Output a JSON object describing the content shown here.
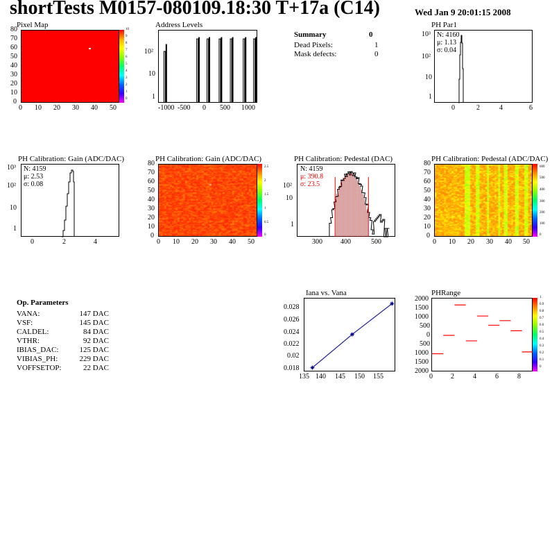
{
  "header": {
    "title": "shortTests M0157-080109.18:30 T+17a (C14)",
    "date": "Wed Jan  9 20:01:15 2008"
  },
  "summary": {
    "title": "Summary",
    "count": "0",
    "rows": [
      {
        "label": "Dead Pixels:",
        "value": "1"
      },
      {
        "label": "Mask defects:",
        "value": "0"
      }
    ]
  },
  "op_params": {
    "title": "Op. Parameters",
    "rows": [
      {
        "label": "VANA:",
        "value": "147 DAC"
      },
      {
        "label": "VSF:",
        "value": "145 DAC"
      },
      {
        "label": "CALDEL:",
        "value": "84 DAC"
      },
      {
        "label": "VTHR:",
        "value": "92 DAC"
      },
      {
        "label": "IBIAS_DAC:",
        "value": "125 DAC"
      },
      {
        "label": "VIBIAS_PH:",
        "value": "229 DAC"
      },
      {
        "label": "VOFFSETOP:",
        "value": "22 DAC"
      }
    ]
  },
  "colors": {
    "red": "#ff0000",
    "navy": "#00008b",
    "line_blue": "#2d2da0"
  },
  "chart_data": [
    {
      "id": "pixel_map",
      "type": "heatmap",
      "title": "Pixel Map",
      "xlim": [
        0,
        52
      ],
      "ylim": [
        0,
        80
      ],
      "xticks": [
        "0",
        "10",
        "20",
        "30",
        "40",
        "50"
      ],
      "yticks": [
        "0",
        "10",
        "20",
        "30",
        "40",
        "50",
        "60",
        "70",
        "80"
      ],
      "zticks": [
        "10",
        "9",
        "8",
        "7",
        "6",
        "5",
        "4",
        "3",
        "2",
        "1",
        "0"
      ],
      "fill_color": "#ff0000",
      "dead_pixel": [
        37,
        61
      ]
    },
    {
      "id": "address_levels",
      "type": "bar",
      "title": "Address Levels",
      "log_y": true,
      "xlim": [
        -1150,
        1150
      ],
      "xticks": [
        "-1000",
        "-500",
        "0",
        "500",
        "1000"
      ],
      "yticks": [
        "1",
        "10",
        "10²"
      ],
      "peaks": [
        -1000,
        -240,
        0,
        280,
        540,
        840,
        1080
      ]
    },
    {
      "id": "ph_par1",
      "type": "bar",
      "title": "PH Par1",
      "log_y": true,
      "xlim": [
        -1,
        6
      ],
      "xticks": [
        "0",
        "2",
        "4",
        "6"
      ],
      "yticks": [
        "1",
        "10",
        "10²",
        "10³"
      ],
      "stats": [
        "N: 4160",
        "μ: 1.13",
        "σ: 0.04"
      ]
    },
    {
      "id": "ph_gain_hist",
      "type": "bar",
      "title": "PH Calibration: Gain (ADC/DAC)",
      "log_y": true,
      "xlim": [
        -1,
        5.5
      ],
      "xticks": [
        "0",
        "2",
        "4"
      ],
      "yticks": [
        "1",
        "10",
        "10²",
        "10³"
      ],
      "stats": [
        "N: 4159",
        "μ: 2.53",
        "σ: 0.08"
      ]
    },
    {
      "id": "ph_gain_map",
      "type": "heatmap",
      "title": "PH Calibration: Gain (ADC/DAC)",
      "xticks": [
        "0",
        "10",
        "20",
        "30",
        "40",
        "50"
      ],
      "yticks": [
        "0",
        "10",
        "20",
        "30",
        "40",
        "50",
        "60",
        "70",
        "80"
      ],
      "zticks": [
        "2.5",
        "2",
        "1.5",
        "1",
        "0.5",
        "0"
      ]
    },
    {
      "id": "ph_pedestal_hist",
      "type": "bar",
      "title": "PH Calibration: Pedestal (DAC)",
      "log_y": true,
      "xlim": [
        210,
        550
      ],
      "xticks": [
        "300",
        "400",
        "500"
      ],
      "yticks": [
        "1",
        "10",
        "10²"
      ],
      "stats": [
        "N: 4159",
        "μ: 390.8",
        "σ: 23.5"
      ],
      "cut_lines": [
        340,
        455
      ]
    },
    {
      "id": "ph_pedestal_map",
      "type": "heatmap",
      "title": "PH Calibration: Pedestal (ADC/DAC)",
      "xticks": [
        "0",
        "10",
        "20",
        "30",
        "40",
        "50"
      ],
      "yticks": [
        "0",
        "10",
        "20",
        "30",
        "40",
        "50",
        "60",
        "70",
        "80"
      ],
      "zticks": [
        "600",
        "500",
        "400",
        "300",
        "200",
        "100",
        "0"
      ]
    },
    {
      "id": "iana_vana",
      "type": "line",
      "title": "Iana vs. Vana",
      "xlim": [
        135,
        158
      ],
      "ylim": [
        0.018,
        0.0295
      ],
      "xticks": [
        "135",
        "140",
        "145",
        "150",
        "155"
      ],
      "yticks": [
        "0.018",
        "0.02",
        "0.022",
        "0.024",
        "0.026",
        "0.028"
      ],
      "x": [
        137,
        147,
        157
      ],
      "y": [
        0.0187,
        0.0239,
        0.0287
      ]
    },
    {
      "id": "ph_range",
      "type": "scatter",
      "title": "PHRange",
      "xlim": [
        0,
        9
      ],
      "ylim": [
        -2000,
        2000
      ],
      "xticks": [
        "0",
        "2",
        "4",
        "6",
        "8"
      ],
      "yticks": [
        "2000",
        "1500",
        "1000",
        "500",
        "0",
        "500",
        "1000",
        "1500",
        "2000"
      ],
      "zticks": [
        "1",
        "0.9",
        "0.8",
        "0.7",
        "0.6",
        "0.5",
        "0.4",
        "0.3",
        "0.2",
        "0.1",
        "0"
      ],
      "x": [
        0,
        1,
        2,
        3,
        4,
        5,
        6,
        7,
        8
      ],
      "y": [
        -1000,
        0,
        1650,
        -300,
        1050,
        550,
        800,
        250,
        -900
      ]
    }
  ]
}
